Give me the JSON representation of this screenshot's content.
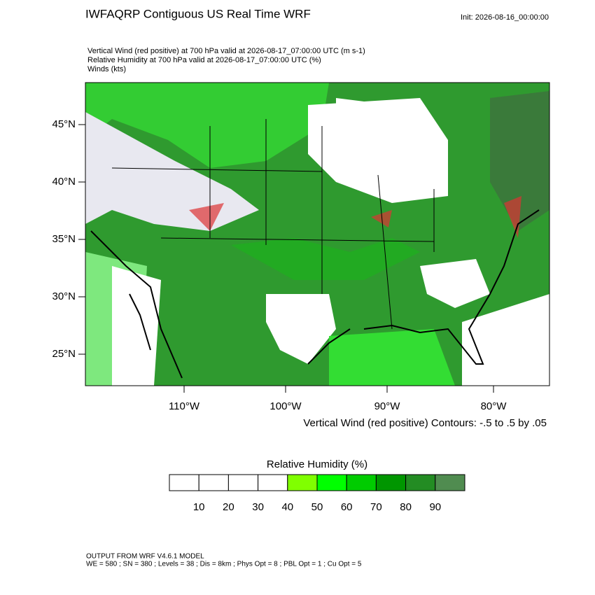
{
  "header": {
    "title": "IWFAQRP Contiguous US Real Time WRF",
    "init": "Init: 2026-08-16_00:00:00"
  },
  "fields": [
    "Vertical Wind (red positive) at 700 hPa valid at 2026-08-17_07:00:00 UTC   (m s-1)",
    "Relative Humidity at 700 hPa valid at 2026-08-17_07:00:00 UTC   (%)",
    "Winds   (kts)"
  ],
  "map": {
    "lat_labels": [
      "45°N",
      "40°N",
      "35°N",
      "30°N",
      "25°N"
    ],
    "lon_labels": [
      "110°W",
      "100°W",
      "90°W",
      "80°W"
    ],
    "contour_note": "Vertical Wind (red positive) Contours: -.5 to .5 by .05"
  },
  "colorbar": {
    "title": "Relative Humidity  (%)",
    "labels": [
      10,
      20,
      30,
      40,
      50,
      60,
      70,
      80,
      90
    ],
    "colors": [
      "#ffffff",
      "#ffffff",
      "#ffffff",
      "#ffffff",
      "#80ff00",
      "#00ff00",
      "#00cc00",
      "#009600",
      "#238c23",
      "#508c50"
    ]
  },
  "footer": [
    "OUTPUT FROM WRF V4.6.1 MODEL",
    "WE = 580 ; SN = 380 ; Levels = 38 ; Dis = 8km ; Phys Opt = 8 ; PBL Opt = 1 ; Cu Opt = 5"
  ]
}
